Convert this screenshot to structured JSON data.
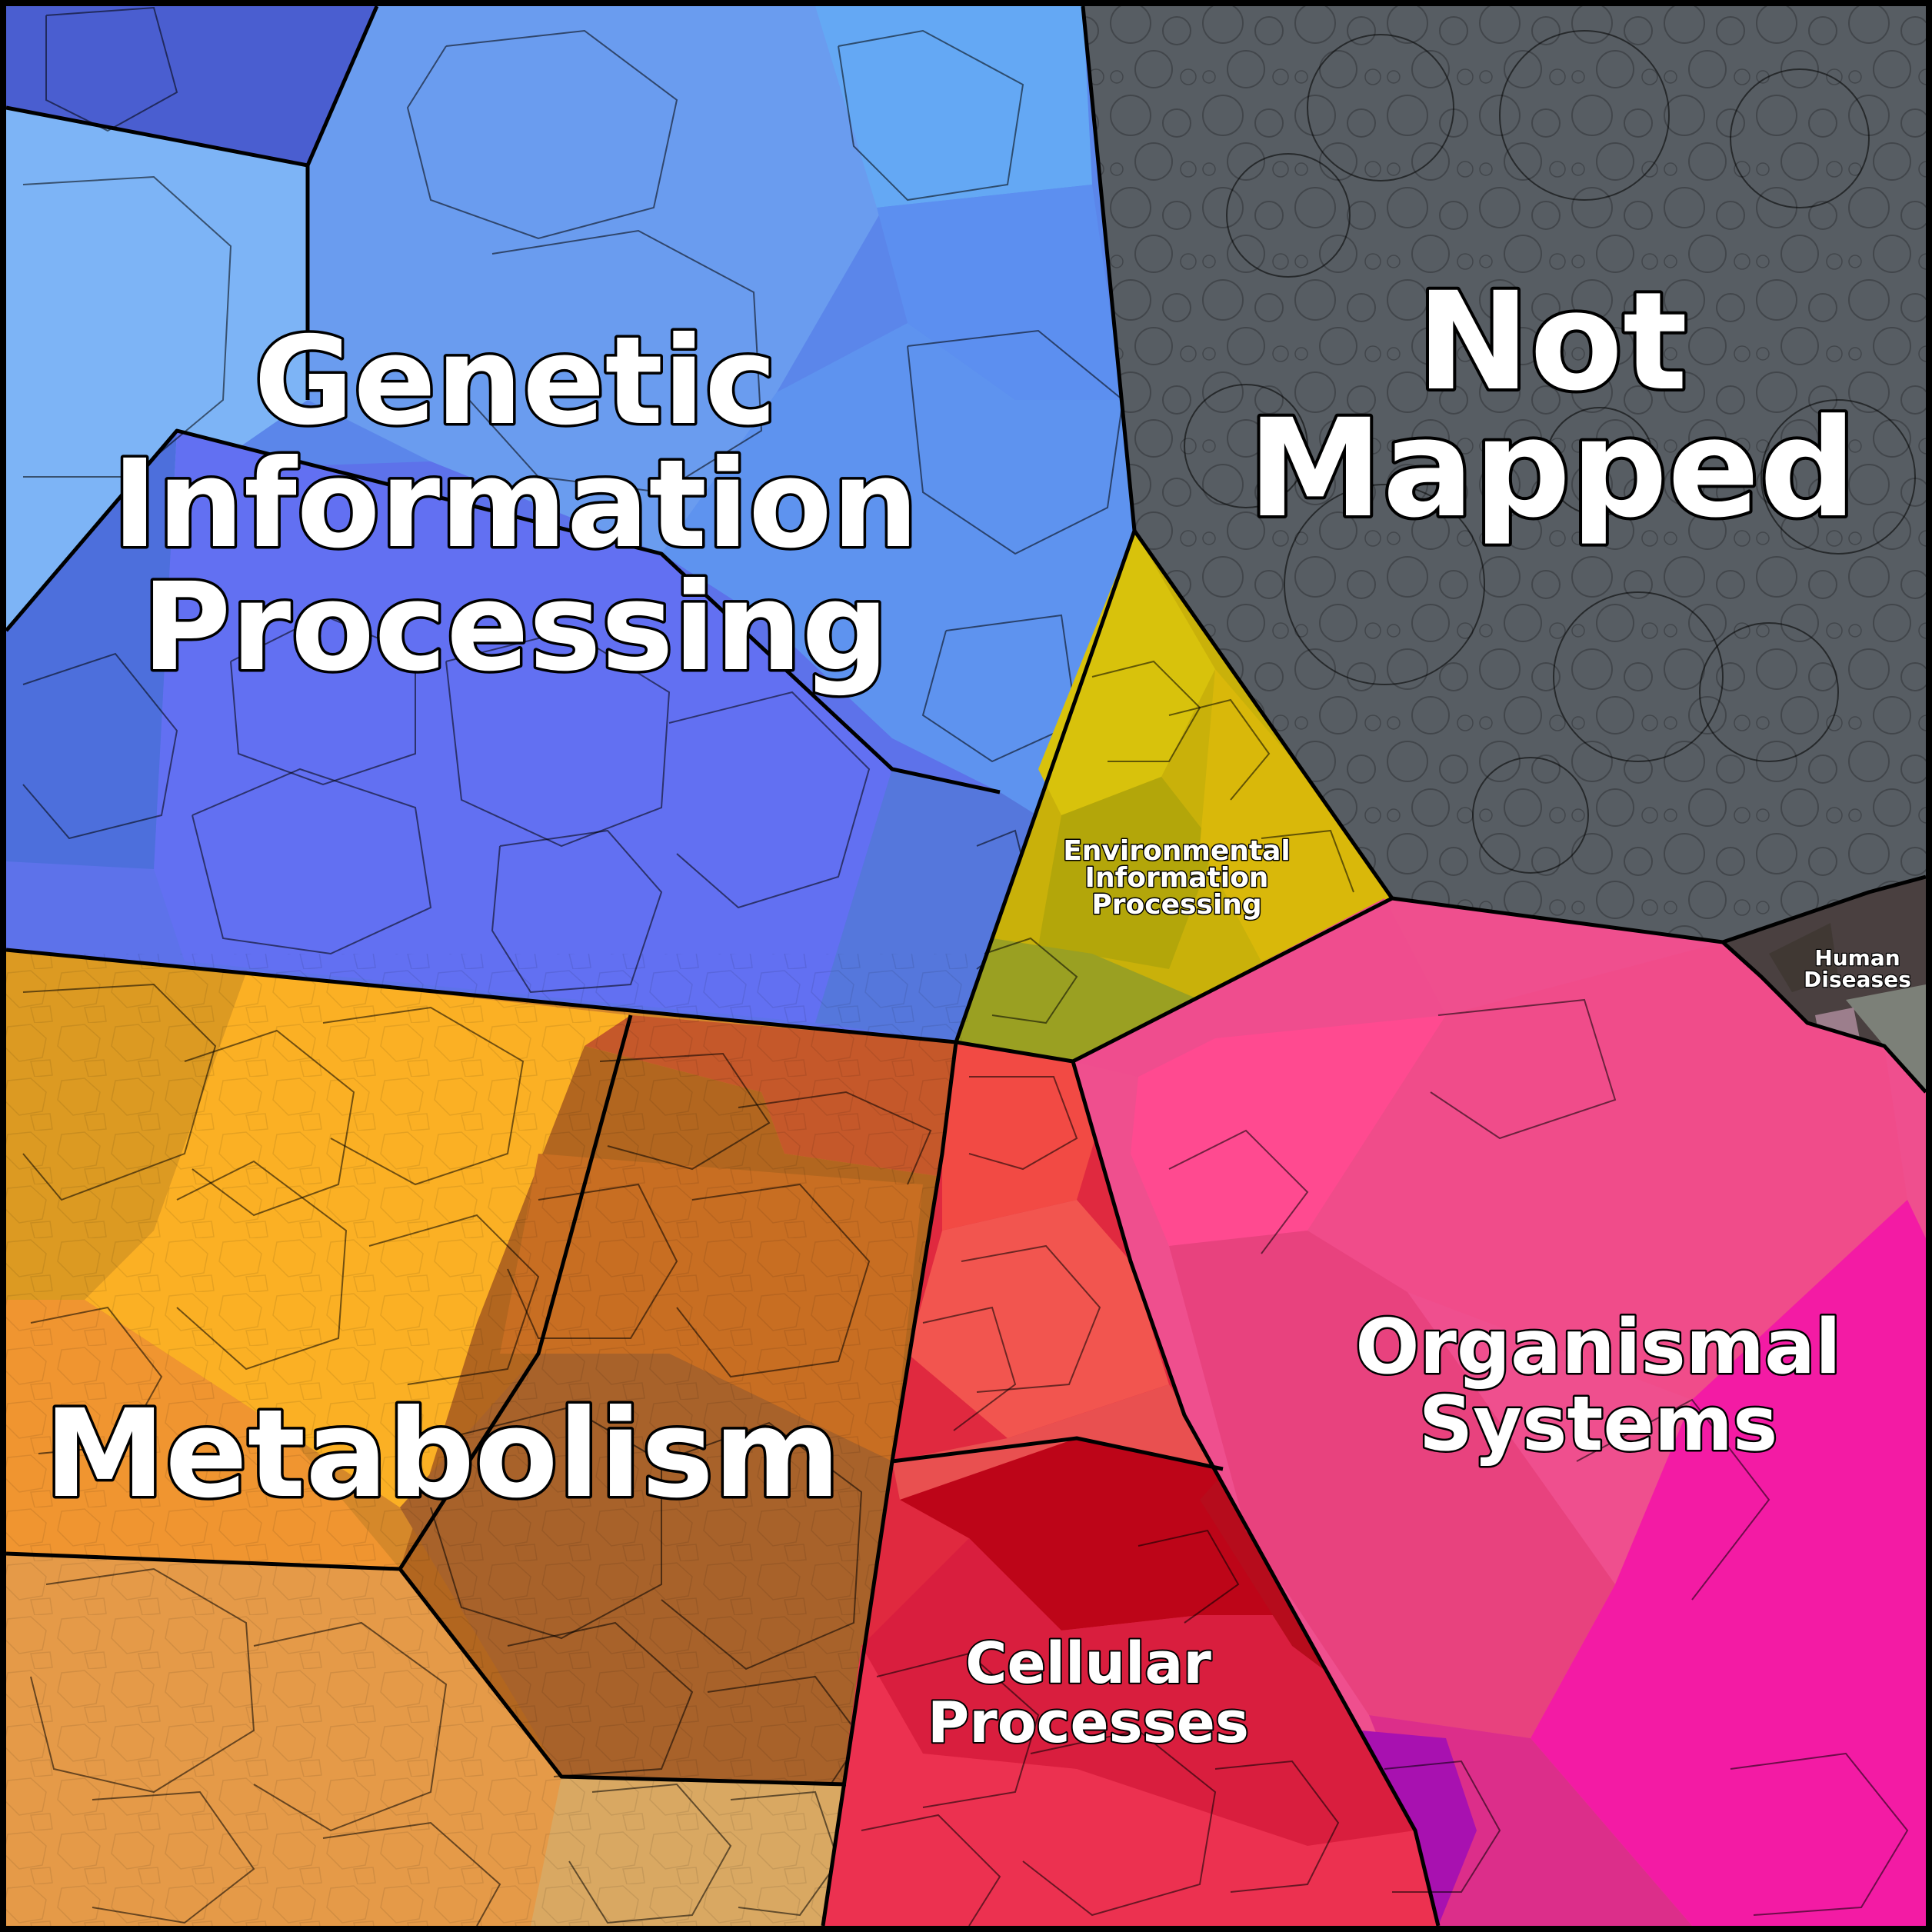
{
  "diagram": {
    "regions": [
      {
        "id": "genetic",
        "lines": [
          "Genetic",
          "Information",
          "Processing"
        ],
        "color": "#5b8cf0"
      },
      {
        "id": "not-mapped",
        "lines": [
          "Not",
          "Mapped"
        ],
        "color": "#575c63"
      },
      {
        "id": "environmental",
        "lines": [
          "Environmental",
          "Information",
          "Processing"
        ],
        "color": "#c9b10a"
      },
      {
        "id": "human-diseases",
        "lines": [
          "Human",
          "Diseases"
        ],
        "color": "#4a4040"
      },
      {
        "id": "metabolism",
        "lines": [
          "Metabolism"
        ],
        "color": "#d5882a"
      },
      {
        "id": "organismal",
        "lines": [
          "Organismal",
          "Systems"
        ],
        "color": "#ef4f8e"
      },
      {
        "id": "cellular",
        "lines": [
          "Cellular",
          "Processes"
        ],
        "color": "#e0293f"
      }
    ]
  }
}
